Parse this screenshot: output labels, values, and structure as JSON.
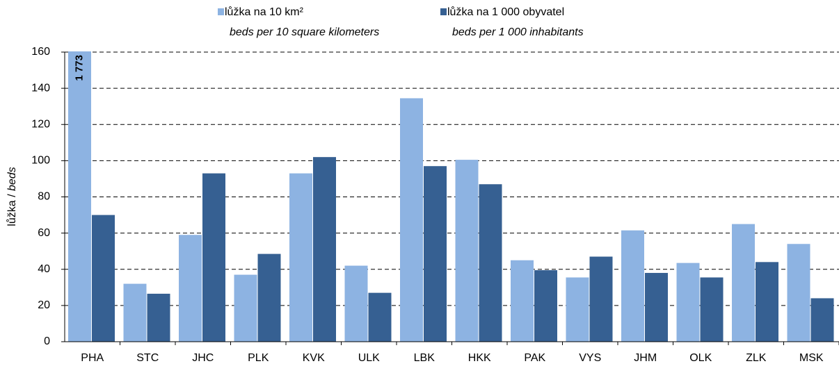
{
  "chart_data": {
    "type": "bar",
    "ylabel": {
      "text": "lůžka / ",
      "italic": "beds"
    },
    "categories": [
      "PHA",
      "STC",
      "JHC",
      "PLK",
      "KVK",
      "ULK",
      "LBK",
      "HKK",
      "PAK",
      "VYS",
      "JHM",
      "OLK",
      "ZLK",
      "MSK"
    ],
    "series": [
      {
        "name": "lůžka na 10 km²",
        "name_en": "beds per 10 square kilometers",
        "color": "#8db3e2",
        "values": [
          1773,
          32,
          59,
          37,
          93,
          42,
          134.5,
          100.5,
          45,
          35.5,
          61.5,
          43.5,
          65,
          54
        ],
        "value_labels": [
          "1 773",
          null,
          null,
          null,
          null,
          null,
          null,
          null,
          null,
          null,
          null,
          null,
          null,
          null
        ]
      },
      {
        "name": "lůžka na 1 000 obyvatel",
        "name_en": "beds per 1 000 inhabitants",
        "color": "#366092",
        "values": [
          70,
          26.5,
          93,
          48.5,
          102,
          27,
          97,
          87,
          39.5,
          47,
          38,
          35.5,
          44,
          24
        ]
      }
    ],
    "ylim": [
      0,
      160
    ],
    "yticks": [
      0,
      20,
      40,
      60,
      80,
      100,
      120,
      140,
      160
    ],
    "grid": true
  }
}
